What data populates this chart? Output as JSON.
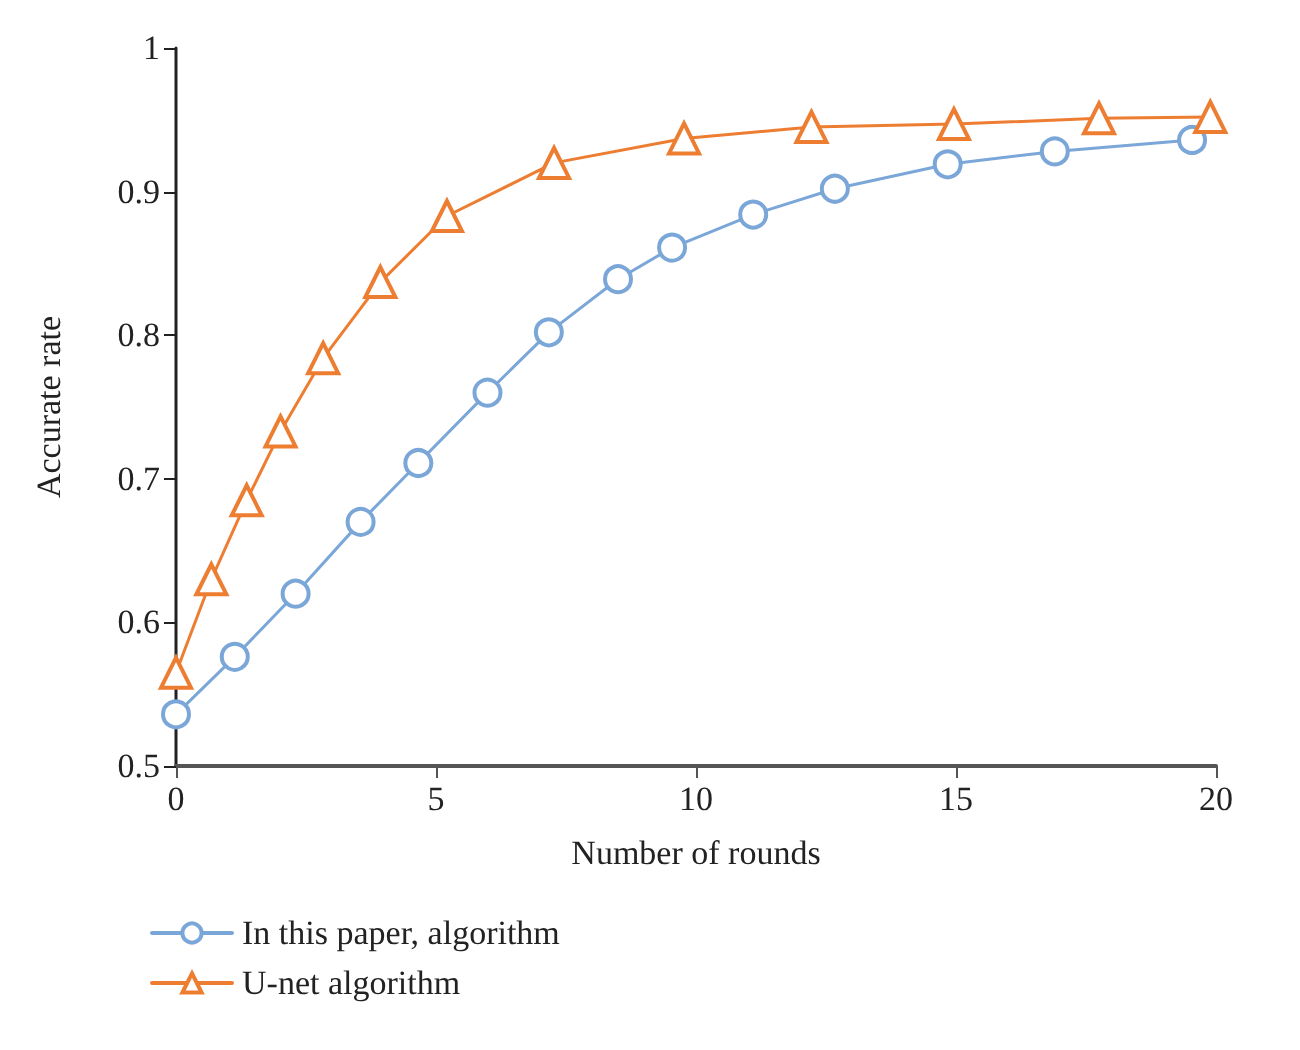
{
  "chart_data": {
    "type": "line",
    "xlabel": "Number of rounds",
    "ylabel": "Accurate rate",
    "xlim": [
      0,
      20
    ],
    "xticks": [
      0,
      5,
      10,
      15,
      20
    ],
    "ylim": [
      0.5,
      1
    ],
    "yticks": [
      0.5,
      0.6,
      0.7,
      0.8,
      0.9,
      1
    ],
    "grid": false,
    "legend": "bottom left",
    "line_style": "solid",
    "series": [
      {
        "name": "In this paper, algorithm",
        "color": "#7aa6d8",
        "marker": "circle",
        "x": [
          0,
          1.13,
          2.3,
          3.55,
          4.66,
          5.99,
          7.17,
          8.5,
          9.54,
          11.1,
          12.67,
          14.84,
          16.9,
          19.54
        ],
        "values": [
          0.536,
          0.576,
          0.62,
          0.67,
          0.711,
          0.76,
          0.802,
          0.839,
          0.861,
          0.884,
          0.902,
          0.919,
          0.928,
          0.936
        ]
      },
      {
        "name": "U-net algorithm",
        "color": "#ed7d31",
        "marker": "triangle",
        "x": [
          0,
          0.68,
          1.36,
          2.01,
          2.83,
          3.93,
          5.21,
          7.27,
          9.77,
          12.22,
          14.96,
          17.75,
          19.89
        ],
        "values": [
          0.565,
          0.63,
          0.685,
          0.733,
          0.784,
          0.837,
          0.883,
          0.92,
          0.937,
          0.945,
          0.947,
          0.951,
          0.952
        ]
      }
    ]
  }
}
